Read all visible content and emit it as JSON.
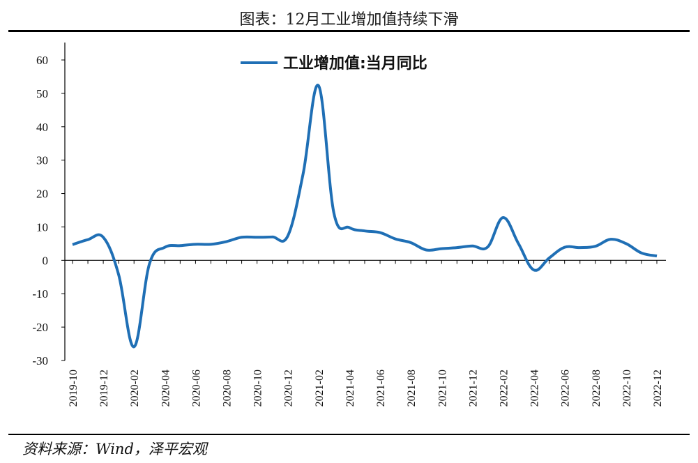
{
  "title": "图表：12月工业增加值持续下滑",
  "source": "资料来源：Wind，泽平宏观",
  "chart_data": {
    "type": "line",
    "ylim": [
      -30,
      60
    ],
    "yticks": [
      60,
      50,
      40,
      30,
      20,
      10,
      0,
      -10,
      -20,
      -30
    ],
    "x": [
      "2019-10",
      "2019-11",
      "2019-12",
      "2020-01",
      "2020-02",
      "2020-03",
      "2020-04",
      "2020-05",
      "2020-06",
      "2020-07",
      "2020-08",
      "2020-09",
      "2020-10",
      "2020-11",
      "2020-12",
      "2021-01",
      "2021-02",
      "2021-03",
      "2021-04",
      "2021-05",
      "2021-06",
      "2021-07",
      "2021-08",
      "2021-09",
      "2021-10",
      "2021-11",
      "2021-12",
      "2022-01",
      "2022-02",
      "2022-03",
      "2022-04",
      "2022-05",
      "2022-06",
      "2022-07",
      "2022-08",
      "2022-09",
      "2022-10",
      "2022-11",
      "2022-12"
    ],
    "xticks": [
      "2019-10",
      "2019-12",
      "2020-02",
      "2020-04",
      "2020-06",
      "2020-08",
      "2020-10",
      "2020-12",
      "2021-02",
      "2021-04",
      "2021-06",
      "2021-08",
      "2021-10",
      "2021-12",
      "2022-02",
      "2022-04",
      "2022-06",
      "2022-08",
      "2022-10",
      "2022-12"
    ],
    "series": [
      {
        "name": "工业增加值:当月同比",
        "color": "#1f6fb5",
        "values": [
          4.7,
          6.2,
          6.9,
          -4.3,
          -25.9,
          -1.1,
          3.9,
          4.4,
          4.8,
          4.8,
          5.6,
          6.9,
          6.9,
          7.0,
          7.3,
          26.0,
          52.3,
          14.1,
          9.8,
          8.8,
          8.3,
          6.4,
          5.3,
          3.1,
          3.5,
          3.8,
          4.3,
          4.0,
          12.8,
          5.0,
          -2.9,
          0.7,
          3.9,
          3.8,
          4.2,
          6.3,
          5.0,
          2.2,
          1.3
        ]
      }
    ]
  }
}
